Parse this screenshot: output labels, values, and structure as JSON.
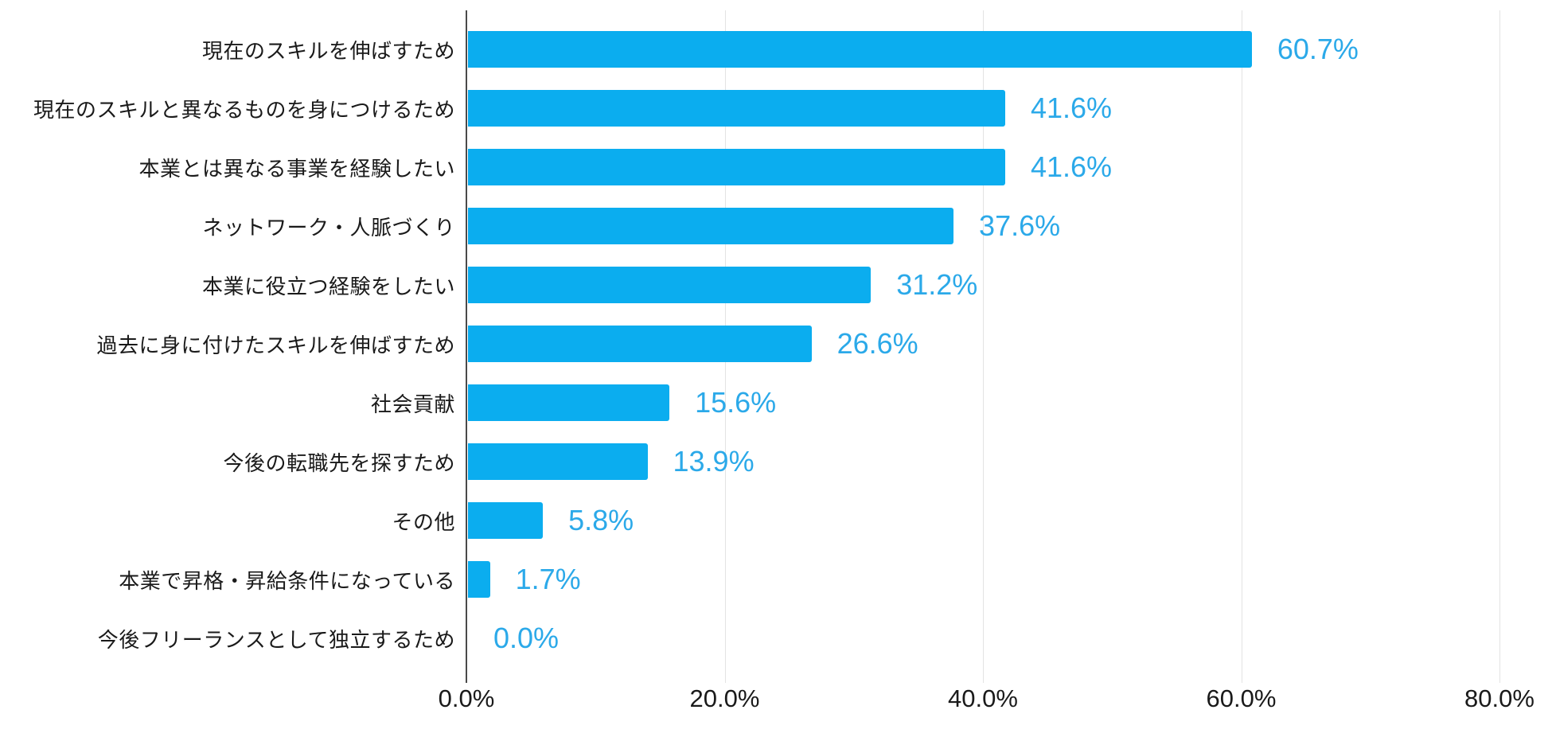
{
  "page": {
    "background": "#ffffff"
  },
  "chart_data": {
    "type": "bar",
    "orientation": "horizontal",
    "title": "",
    "xlabel": "",
    "ylabel": "",
    "categories": [
      "現在のスキルを伸ばすため",
      "現在のスキルと異なるものを身につけるため",
      "本業とは異なる事業を経験したい",
      "ネットワーク・人脈づくり",
      "本業に役立つ経験をしたい",
      "過去に身に付けたスキルを伸ばすため",
      "社会貢献",
      "今後の転職先を探すため",
      "その他",
      "本業で昇格・昇給条件になっている",
      "今後フリーランスとして独立するため"
    ],
    "values": [
      60.7,
      41.6,
      41.6,
      37.6,
      31.2,
      26.6,
      15.6,
      13.9,
      5.8,
      1.7,
      0.0
    ],
    "value_labels": [
      "60.7%",
      "41.6%",
      "41.6%",
      "37.6%",
      "31.2%",
      "26.6%",
      "15.6%",
      "13.9%",
      "5.8%",
      "1.7%",
      "0.0%"
    ],
    "xlim": [
      0,
      80
    ],
    "x_ticks": [
      {
        "value": 0,
        "label": "0.0%"
      },
      {
        "value": 20,
        "label": "20.0%"
      },
      {
        "value": 40,
        "label": "40.0%"
      },
      {
        "value": 60,
        "label": "60.0%"
      },
      {
        "value": 80,
        "label": "80.0%"
      }
    ],
    "grid": "vertical-only",
    "legend": "none",
    "colors": {
      "bar": "#0badef",
      "value_label": "#2ba9e9",
      "category_label": "#1a1a1a",
      "tick_label": "#1a1a1a",
      "gridline": "#e3e3e3",
      "axis_line": "#4a4a4a",
      "background": "#ffffff"
    }
  }
}
